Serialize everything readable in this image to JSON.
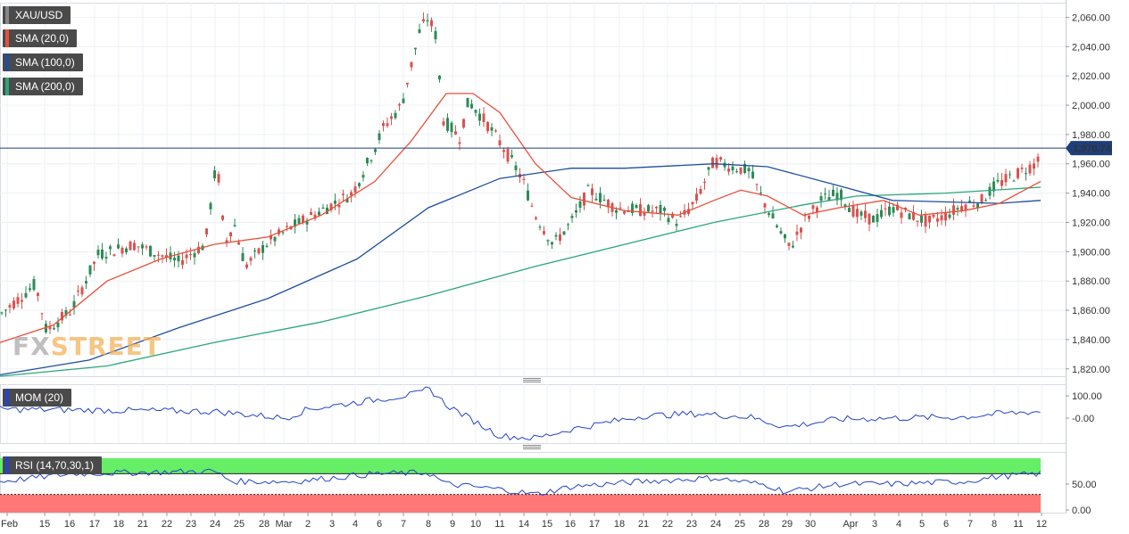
{
  "legend": {
    "symbol": "XAU/USD",
    "sma20": "SMA (20,0)",
    "sma100": "SMA (100,0)",
    "sma200": "SMA (200,0)",
    "mom": "MOM (20)",
    "rsi": "RSI (14,70,30,1)"
  },
  "colors": {
    "up": "#2e8b57",
    "down": "#d9534f",
    "sma20": "#e8503a",
    "sma100": "#1f4e9e",
    "sma200": "#2aa77a",
    "price_line": "#1f3f7a",
    "mom_line": "#2343c8",
    "rsi_line": "#2343c8",
    "overbought": "#66ee66",
    "oversold": "#ff7777",
    "symbol_swatch": "#888888"
  },
  "current_price": "1,970.74",
  "watermark": {
    "fx": "FX",
    "street": "STREET"
  },
  "chart_data": [
    {
      "type": "candlestick",
      "title": "XAU/USD",
      "y_ticks": [
        "2,060.00",
        "2,040.00",
        "2,020.00",
        "2,000.00",
        "1,980.00",
        "1,960.00",
        "1,940.00",
        "1,920.00",
        "1,900.00",
        "1,880.00",
        "1,860.00",
        "1,840.00",
        "1,820.00"
      ],
      "ylim": [
        1815,
        2070
      ],
      "x_ticks": [
        "Feb",
        "15",
        "16",
        "17",
        "18",
        "21",
        "22",
        "23",
        "24",
        "25",
        "28",
        "Mar",
        "2",
        "3",
        "4",
        "6",
        "7",
        "8",
        "9",
        "10",
        "11",
        "14",
        "15",
        "16",
        "17",
        "18",
        "21",
        "22",
        "23",
        "24",
        "25",
        "28",
        "29",
        "30",
        "Apr",
        "3",
        "4",
        "5",
        "6",
        "7",
        "8",
        "11",
        "12"
      ],
      "current_price": 1970.74,
      "sma20": [
        [
          0,
          1838
        ],
        [
          60,
          1850
        ],
        [
          120,
          1880
        ],
        [
          180,
          1895
        ],
        [
          240,
          1905
        ],
        [
          300,
          1910
        ],
        [
          360,
          1925
        ],
        [
          420,
          1948
        ],
        [
          460,
          1975
        ],
        [
          500,
          2008
        ],
        [
          530,
          2008
        ],
        [
          560,
          1995
        ],
        [
          600,
          1960
        ],
        [
          640,
          1937
        ],
        [
          700,
          1928
        ],
        [
          760,
          1925
        ],
        [
          800,
          1935
        ],
        [
          830,
          1942
        ],
        [
          860,
          1938
        ],
        [
          900,
          1925
        ],
        [
          940,
          1930
        ],
        [
          990,
          1935
        ],
        [
          1030,
          1925
        ],
        [
          1080,
          1928
        ],
        [
          1120,
          1933
        ],
        [
          1166,
          1948
        ]
      ],
      "sma100": [
        [
          0,
          1816
        ],
        [
          100,
          1826
        ],
        [
          200,
          1848
        ],
        [
          300,
          1868
        ],
        [
          400,
          1895
        ],
        [
          480,
          1930
        ],
        [
          560,
          1950
        ],
        [
          640,
          1957
        ],
        [
          700,
          1957
        ],
        [
          800,
          1960
        ],
        [
          860,
          1958
        ],
        [
          940,
          1945
        ],
        [
          1000,
          1935
        ],
        [
          1060,
          1934
        ],
        [
          1120,
          1933
        ],
        [
          1166,
          1935
        ]
      ],
      "sma200": [
        [
          0,
          1815
        ],
        [
          120,
          1822
        ],
        [
          240,
          1838
        ],
        [
          360,
          1852
        ],
        [
          480,
          1870
        ],
        [
          600,
          1890
        ],
        [
          700,
          1905
        ],
        [
          800,
          1920
        ],
        [
          900,
          1932
        ],
        [
          960,
          1938
        ],
        [
          1060,
          1940
        ],
        [
          1166,
          1944
        ]
      ]
    },
    {
      "type": "line",
      "title": "MOM (20)",
      "y_ticks": [
        "100.00",
        "-0.00"
      ]
    },
    {
      "type": "line",
      "title": "RSI (14,70,30,1)",
      "y_ticks": [
        "50.00",
        "0.00"
      ],
      "overbought": 70,
      "oversold": 30
    }
  ]
}
